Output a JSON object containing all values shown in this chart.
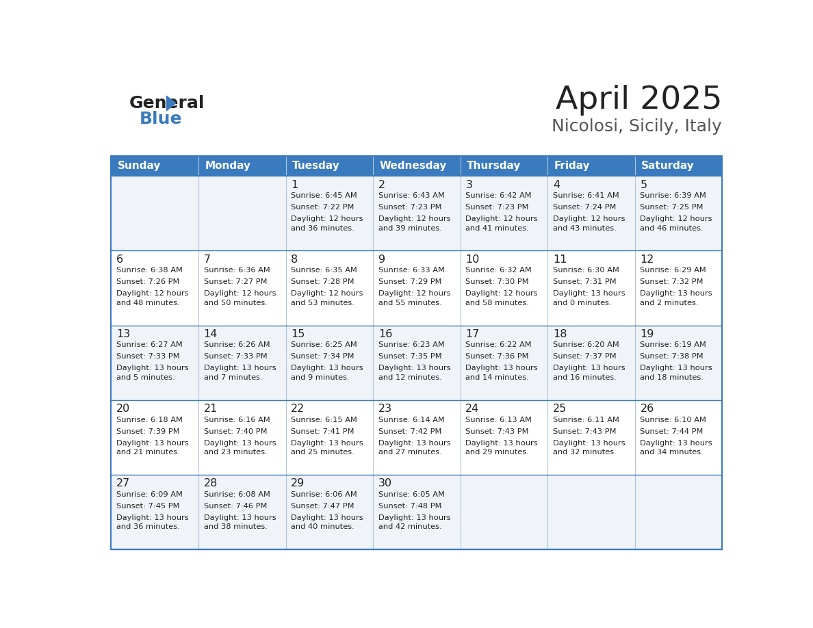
{
  "title": "April 2025",
  "subtitle": "Nicolosi, Sicily, Italy",
  "header_bg": "#3a7bbf",
  "header_text": "#ffffff",
  "row_bg_odd": "#f0f4f8",
  "row_bg_even": "#ffffff",
  "day_names": [
    "Sunday",
    "Monday",
    "Tuesday",
    "Wednesday",
    "Thursday",
    "Friday",
    "Saturday"
  ],
  "calendar": [
    [
      {
        "day": "",
        "sunrise": "",
        "sunset": "",
        "daylight": ""
      },
      {
        "day": "",
        "sunrise": "",
        "sunset": "",
        "daylight": ""
      },
      {
        "day": "1",
        "sunrise": "Sunrise: 6:45 AM",
        "sunset": "Sunset: 7:22 PM",
        "daylight": "Daylight: 12 hours\nand 36 minutes."
      },
      {
        "day": "2",
        "sunrise": "Sunrise: 6:43 AM",
        "sunset": "Sunset: 7:23 PM",
        "daylight": "Daylight: 12 hours\nand 39 minutes."
      },
      {
        "day": "3",
        "sunrise": "Sunrise: 6:42 AM",
        "sunset": "Sunset: 7:23 PM",
        "daylight": "Daylight: 12 hours\nand 41 minutes."
      },
      {
        "day": "4",
        "sunrise": "Sunrise: 6:41 AM",
        "sunset": "Sunset: 7:24 PM",
        "daylight": "Daylight: 12 hours\nand 43 minutes."
      },
      {
        "day": "5",
        "sunrise": "Sunrise: 6:39 AM",
        "sunset": "Sunset: 7:25 PM",
        "daylight": "Daylight: 12 hours\nand 46 minutes."
      }
    ],
    [
      {
        "day": "6",
        "sunrise": "Sunrise: 6:38 AM",
        "sunset": "Sunset: 7:26 PM",
        "daylight": "Daylight: 12 hours\nand 48 minutes."
      },
      {
        "day": "7",
        "sunrise": "Sunrise: 6:36 AM",
        "sunset": "Sunset: 7:27 PM",
        "daylight": "Daylight: 12 hours\nand 50 minutes."
      },
      {
        "day": "8",
        "sunrise": "Sunrise: 6:35 AM",
        "sunset": "Sunset: 7:28 PM",
        "daylight": "Daylight: 12 hours\nand 53 minutes."
      },
      {
        "day": "9",
        "sunrise": "Sunrise: 6:33 AM",
        "sunset": "Sunset: 7:29 PM",
        "daylight": "Daylight: 12 hours\nand 55 minutes."
      },
      {
        "day": "10",
        "sunrise": "Sunrise: 6:32 AM",
        "sunset": "Sunset: 7:30 PM",
        "daylight": "Daylight: 12 hours\nand 58 minutes."
      },
      {
        "day": "11",
        "sunrise": "Sunrise: 6:30 AM",
        "sunset": "Sunset: 7:31 PM",
        "daylight": "Daylight: 13 hours\nand 0 minutes."
      },
      {
        "day": "12",
        "sunrise": "Sunrise: 6:29 AM",
        "sunset": "Sunset: 7:32 PM",
        "daylight": "Daylight: 13 hours\nand 2 minutes."
      }
    ],
    [
      {
        "day": "13",
        "sunrise": "Sunrise: 6:27 AM",
        "sunset": "Sunset: 7:33 PM",
        "daylight": "Daylight: 13 hours\nand 5 minutes."
      },
      {
        "day": "14",
        "sunrise": "Sunrise: 6:26 AM",
        "sunset": "Sunset: 7:33 PM",
        "daylight": "Daylight: 13 hours\nand 7 minutes."
      },
      {
        "day": "15",
        "sunrise": "Sunrise: 6:25 AM",
        "sunset": "Sunset: 7:34 PM",
        "daylight": "Daylight: 13 hours\nand 9 minutes."
      },
      {
        "day": "16",
        "sunrise": "Sunrise: 6:23 AM",
        "sunset": "Sunset: 7:35 PM",
        "daylight": "Daylight: 13 hours\nand 12 minutes."
      },
      {
        "day": "17",
        "sunrise": "Sunrise: 6:22 AM",
        "sunset": "Sunset: 7:36 PM",
        "daylight": "Daylight: 13 hours\nand 14 minutes."
      },
      {
        "day": "18",
        "sunrise": "Sunrise: 6:20 AM",
        "sunset": "Sunset: 7:37 PM",
        "daylight": "Daylight: 13 hours\nand 16 minutes."
      },
      {
        "day": "19",
        "sunrise": "Sunrise: 6:19 AM",
        "sunset": "Sunset: 7:38 PM",
        "daylight": "Daylight: 13 hours\nand 18 minutes."
      }
    ],
    [
      {
        "day": "20",
        "sunrise": "Sunrise: 6:18 AM",
        "sunset": "Sunset: 7:39 PM",
        "daylight": "Daylight: 13 hours\nand 21 minutes."
      },
      {
        "day": "21",
        "sunrise": "Sunrise: 6:16 AM",
        "sunset": "Sunset: 7:40 PM",
        "daylight": "Daylight: 13 hours\nand 23 minutes."
      },
      {
        "day": "22",
        "sunrise": "Sunrise: 6:15 AM",
        "sunset": "Sunset: 7:41 PM",
        "daylight": "Daylight: 13 hours\nand 25 minutes."
      },
      {
        "day": "23",
        "sunrise": "Sunrise: 6:14 AM",
        "sunset": "Sunset: 7:42 PM",
        "daylight": "Daylight: 13 hours\nand 27 minutes."
      },
      {
        "day": "24",
        "sunrise": "Sunrise: 6:13 AM",
        "sunset": "Sunset: 7:43 PM",
        "daylight": "Daylight: 13 hours\nand 29 minutes."
      },
      {
        "day": "25",
        "sunrise": "Sunrise: 6:11 AM",
        "sunset": "Sunset: 7:43 PM",
        "daylight": "Daylight: 13 hours\nand 32 minutes."
      },
      {
        "day": "26",
        "sunrise": "Sunrise: 6:10 AM",
        "sunset": "Sunset: 7:44 PM",
        "daylight": "Daylight: 13 hours\nand 34 minutes."
      }
    ],
    [
      {
        "day": "27",
        "sunrise": "Sunrise: 6:09 AM",
        "sunset": "Sunset: 7:45 PM",
        "daylight": "Daylight: 13 hours\nand 36 minutes."
      },
      {
        "day": "28",
        "sunrise": "Sunrise: 6:08 AM",
        "sunset": "Sunset: 7:46 PM",
        "daylight": "Daylight: 13 hours\nand 38 minutes."
      },
      {
        "day": "29",
        "sunrise": "Sunrise: 6:06 AM",
        "sunset": "Sunset: 7:47 PM",
        "daylight": "Daylight: 13 hours\nand 40 minutes."
      },
      {
        "day": "30",
        "sunrise": "Sunrise: 6:05 AM",
        "sunset": "Sunset: 7:48 PM",
        "daylight": "Daylight: 13 hours\nand 42 minutes."
      },
      {
        "day": "",
        "sunrise": "",
        "sunset": "",
        "daylight": ""
      },
      {
        "day": "",
        "sunrise": "",
        "sunset": "",
        "daylight": ""
      },
      {
        "day": "",
        "sunrise": "",
        "sunset": "",
        "daylight": ""
      }
    ]
  ],
  "logo_text_general": "General",
  "logo_text_blue": "Blue",
  "border_color": "#3a7bbf",
  "cell_border_color": "#b0c4d8",
  "text_color": "#222222"
}
